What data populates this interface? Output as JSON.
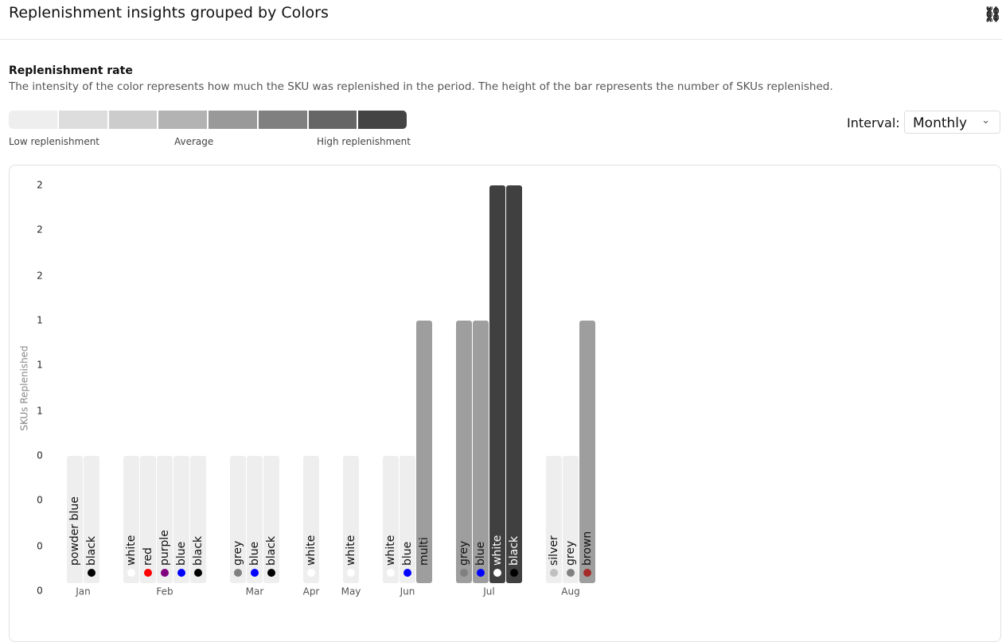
{
  "header": {
    "title": "Replenishment insights grouped by Colors"
  },
  "rate": {
    "title": "Replenishment rate",
    "description": "The intensity of the color represents how much the SKU was replenished in the period. The height of the bar represents the number of SKUs replenished.",
    "scale_colors": [
      "#eeeeee",
      "#dddddd",
      "#cccccc",
      "#b3b3b3",
      "#999999",
      "#808080",
      "#666666",
      "#444444"
    ],
    "scale_labels": [
      "Low replenishment",
      "Average",
      "High replenishment"
    ]
  },
  "interval": {
    "label": "Interval:",
    "value": "Monthly"
  },
  "chart_data": {
    "type": "bar",
    "y_label": "SKUs Replenished",
    "ylim": [
      0,
      3
    ],
    "yticks": [
      {
        "value": 0,
        "label": "0"
      },
      {
        "value": 0.33,
        "label": "0"
      },
      {
        "value": 0.67,
        "label": "0"
      },
      {
        "value": 1,
        "label": "0"
      },
      {
        "value": 1.33,
        "label": "1"
      },
      {
        "value": 1.67,
        "label": "1"
      },
      {
        "value": 2,
        "label": "1"
      },
      {
        "value": 2.33,
        "label": "2"
      },
      {
        "value": 2.67,
        "label": "2"
      },
      {
        "value": 3,
        "label": "2"
      }
    ],
    "groups": [
      {
        "category": "Jan",
        "bars": [
          {
            "name": "powder blue",
            "value": 1,
            "color": "#eeeeee",
            "dot": null
          },
          {
            "name": "black",
            "value": 1,
            "color": "#eeeeee",
            "dot": "#000000"
          }
        ]
      },
      {
        "category": "Feb",
        "bars": [
          {
            "name": "white",
            "value": 1,
            "color": "#eeeeee",
            "dot": "#ffffff"
          },
          {
            "name": "red",
            "value": 1,
            "color": "#eeeeee",
            "dot": "#ff0000"
          },
          {
            "name": "purple",
            "value": 1,
            "color": "#eeeeee",
            "dot": "#800080"
          },
          {
            "name": "blue",
            "value": 1,
            "color": "#eeeeee",
            "dot": "#0000ff"
          },
          {
            "name": "black",
            "value": 1,
            "color": "#eeeeee",
            "dot": "#000000"
          }
        ]
      },
      {
        "category": "Mar",
        "bars": [
          {
            "name": "grey",
            "value": 1,
            "color": "#eeeeee",
            "dot": "#808080"
          },
          {
            "name": "blue",
            "value": 1,
            "color": "#eeeeee",
            "dot": "#0000ff"
          },
          {
            "name": "black",
            "value": 1,
            "color": "#eeeeee",
            "dot": "#000000"
          }
        ]
      },
      {
        "category": "Apr",
        "bars": [
          {
            "name": "white",
            "value": 1,
            "color": "#eeeeee",
            "dot": "#ffffff"
          }
        ]
      },
      {
        "category": "May",
        "bars": [
          {
            "name": "white",
            "value": 1,
            "color": "#eeeeee",
            "dot": "#ffffff"
          }
        ]
      },
      {
        "category": "Jun",
        "bars": [
          {
            "name": "white",
            "value": 1,
            "color": "#eeeeee",
            "dot": "#ffffff"
          },
          {
            "name": "blue",
            "value": 1,
            "color": "#eeeeee",
            "dot": "#0000ff"
          },
          {
            "name": "multi",
            "value": 2,
            "color": "#9e9e9e",
            "dot": null
          }
        ]
      },
      {
        "category": "Jul",
        "bars": [
          {
            "name": "grey",
            "value": 2,
            "color": "#9e9e9e",
            "dot": "#808080"
          },
          {
            "name": "blue",
            "value": 2,
            "color": "#9e9e9e",
            "dot": "#0000ff"
          },
          {
            "name": "white",
            "value": 3,
            "color": "#404040",
            "dot": "#ffffff"
          },
          {
            "name": "black",
            "value": 3,
            "color": "#404040",
            "dot": "#000000"
          }
        ]
      },
      {
        "category": "Aug",
        "bars": [
          {
            "name": "silver",
            "value": 1,
            "color": "#eeeeee",
            "dot": "#c0c0c0"
          },
          {
            "name": "grey",
            "value": 1,
            "color": "#eeeeee",
            "dot": "#808080"
          },
          {
            "name": "brown",
            "value": 2,
            "color": "#9e9e9e",
            "dot": "#a52a2a"
          }
        ]
      }
    ]
  }
}
